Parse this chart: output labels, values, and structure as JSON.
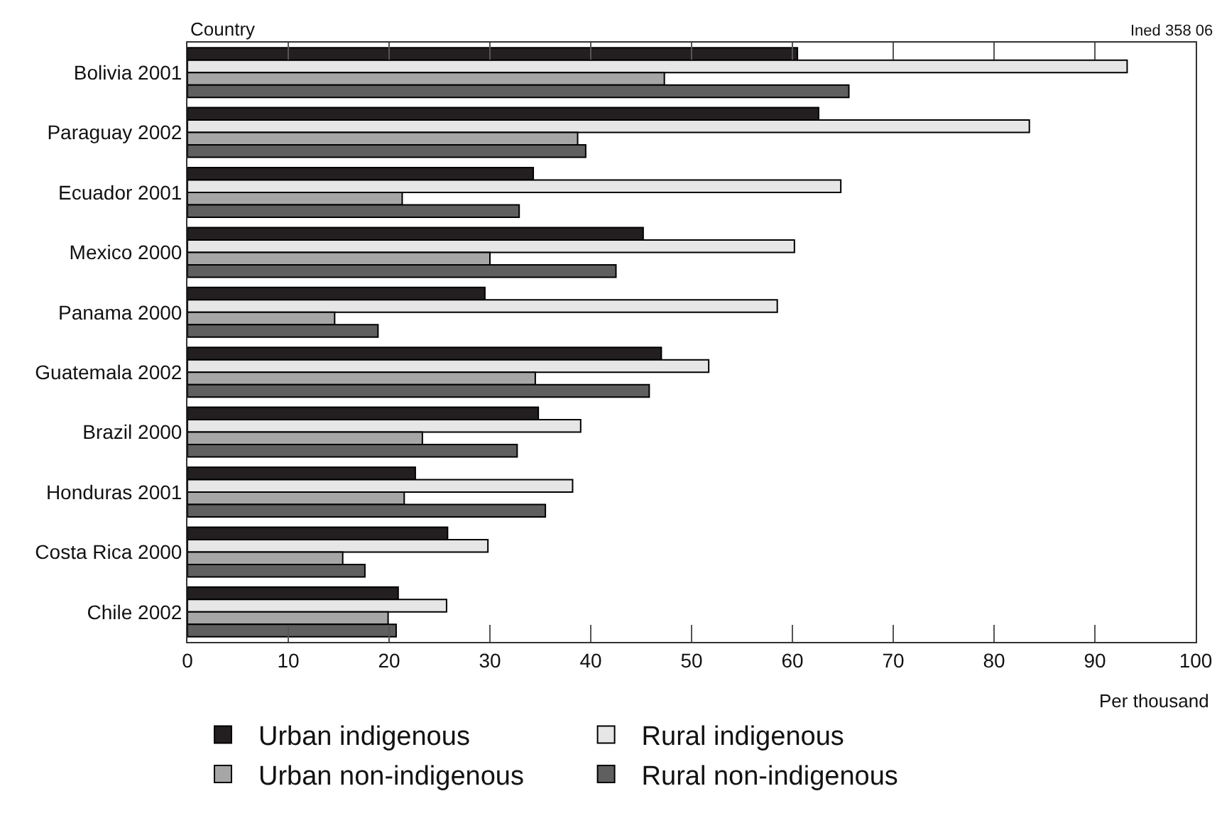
{
  "chart_data": {
    "type": "bar",
    "orientation": "horizontal",
    "ylabel": "Country",
    "xlabel": "Per thousand",
    "annotations": [
      "Ined 358 06"
    ],
    "categories": [
      "Bolivia 2001",
      "Paraguay 2002",
      "Ecuador 2001",
      "Mexico 2000",
      "Panama 2000",
      "Guatemala 2002",
      "Brazil 2000",
      "Honduras 2001",
      "Costa Rica 2000",
      "Chile 2002"
    ],
    "series": [
      {
        "name": "Urban indigenous",
        "color": "#231f20",
        "values": [
          60.5,
          62.6,
          34.3,
          45.2,
          29.5,
          47.0,
          34.8,
          22.6,
          25.8,
          20.9
        ]
      },
      {
        "name": "Rural indigenous",
        "color": "#e6e6e6",
        "values": [
          93.2,
          83.5,
          64.8,
          60.2,
          58.5,
          51.7,
          39.0,
          38.2,
          29.8,
          25.7
        ]
      },
      {
        "name": "Urban non-indigenous",
        "color": "#a6a6a6",
        "values": [
          47.3,
          38.7,
          21.3,
          30.0,
          14.6,
          34.5,
          23.3,
          21.5,
          15.4,
          19.9
        ]
      },
      {
        "name": "Rural non-indigenous",
        "color": "#5f5f5f",
        "values": [
          65.6,
          39.5,
          32.9,
          42.5,
          18.9,
          45.8,
          32.7,
          35.5,
          17.6,
          20.7
        ]
      }
    ],
    "xlim": [
      0,
      100
    ],
    "xticks": [
      0,
      10,
      20,
      30,
      40,
      50,
      60,
      70,
      80,
      90,
      100
    ],
    "grid": false,
    "legend": "bottom"
  }
}
